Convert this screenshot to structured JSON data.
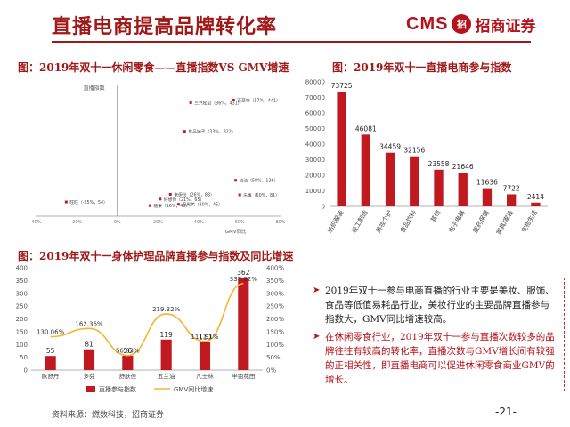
{
  "header": {
    "title": "直播电商提高品牌转化率",
    "logo_text": "CMS",
    "logo_mark": "招",
    "logo_cn": "招商证券"
  },
  "figures": {
    "fig1_title": "图：2019年双十一休闲零食——直播指数VS GMV增速",
    "fig2_title": "图：2019年双十一直播电商参与指数",
    "fig3_title": "图：2019年双十一身体护理品牌直播参与指数及同比增速"
  },
  "info_box": {
    "para1": "2019年双十一参与电商直播的行业主要是美妆、服饰、食品等低值易耗品行业，美妆行业的主要品牌直播参与指数大，GMV同比增速较高。",
    "para2": "在休闲零食行业，2019年双十一参与直播次数较多的品牌往往有较高的转化率，直播次数与GMV增长间有较强的正相关性，即直播电商可以促进休闲零食商业GMV的增长。"
  },
  "footer": {
    "source": "资料来源：燃数科技，招商证券",
    "page": "-21-"
  },
  "colors": {
    "accent": "#b5121b",
    "bar": "#c0191f",
    "line": "#f2b632",
    "text_red": "#a01818"
  },
  "chart_data": [
    {
      "type": "scatter",
      "ylabel": "直播指数",
      "xlabel": "GMV同比",
      "xlim": [
        -40,
        80
      ],
      "ylim": [
        0,
        500
      ],
      "x_ticks": [
        "-40%",
        "-20%",
        "0%",
        "20%",
        "40%",
        "60%",
        "80%"
      ],
      "points": [
        {
          "x": 57,
          "y": 441,
          "label": "百草味（57%，441）"
        },
        {
          "x": 36,
          "y": 431,
          "label": "三只松鼠（36%，431）"
        },
        {
          "x": 33,
          "y": 322,
          "label": "良品铺子（33%，322）"
        },
        {
          "x": 58,
          "y": 136,
          "label": "洽洽（58%，136）"
        },
        {
          "x": 26,
          "y": 83,
          "label": "来伊份（26%，83）"
        },
        {
          "x": 21,
          "y": 65,
          "label": "好想你（21%，65）"
        },
        {
          "x": 30,
          "y": 45,
          "label": "周黑鸭（30%，45）"
        },
        {
          "x": 60,
          "y": 81,
          "label": "乐事（60%，81）"
        },
        {
          "x": 16,
          "y": 40,
          "label": "糖果（16%，40）"
        },
        {
          "x": -25,
          "y": 54,
          "label": "旺旺（-25%，54）"
        }
      ]
    },
    {
      "type": "bar",
      "categories": [
        "纺织服装",
        "轻工制造",
        "美妆个护",
        "食品饮料",
        "其他",
        "电子电器",
        "医药保健",
        "家具/家装",
        "宠物生活"
      ],
      "values": [
        73725,
        46081,
        34459,
        32156,
        23558,
        21646,
        11636,
        7722,
        2414
      ],
      "ylim": [
        0,
        80000
      ],
      "y_ticks": [
        "0",
        "10000",
        "20000",
        "30000",
        "40000",
        "50000",
        "60000",
        "70000",
        "80000"
      ]
    },
    {
      "type": "bar",
      "categories": [
        "欧舒丹",
        "多芬",
        "舒肤佳",
        "五兰油",
        "凡士林",
        "半亩花田"
      ],
      "series": [
        {
          "name": "直播参与指数",
          "type": "bar",
          "values": [
            55,
            81,
            56,
            119,
            110,
            362
          ],
          "labels": [
            "55",
            "81",
            "56",
            "119",
            "110",
            "362"
          ]
        },
        {
          "name": "GMV同比增速",
          "type": "line",
          "values": [
            130.06,
            162.36,
            56.83,
            219.32,
            111.91,
            337.82
          ],
          "labels": [
            "130.06%",
            "162.36%",
            "56.83%",
            "219.32%",
            "111.91%",
            "337.82%"
          ]
        }
      ],
      "ylim": [
        0,
        400
      ],
      "y2lim": [
        0,
        400
      ],
      "y_ticks": [
        "0",
        "50",
        "100",
        "150",
        "200",
        "250",
        "300",
        "350",
        "400"
      ],
      "y2_ticks": [
        "0%",
        "50%",
        "100%",
        "150%",
        "200%",
        "250%",
        "300%",
        "350%",
        "400%"
      ]
    }
  ]
}
